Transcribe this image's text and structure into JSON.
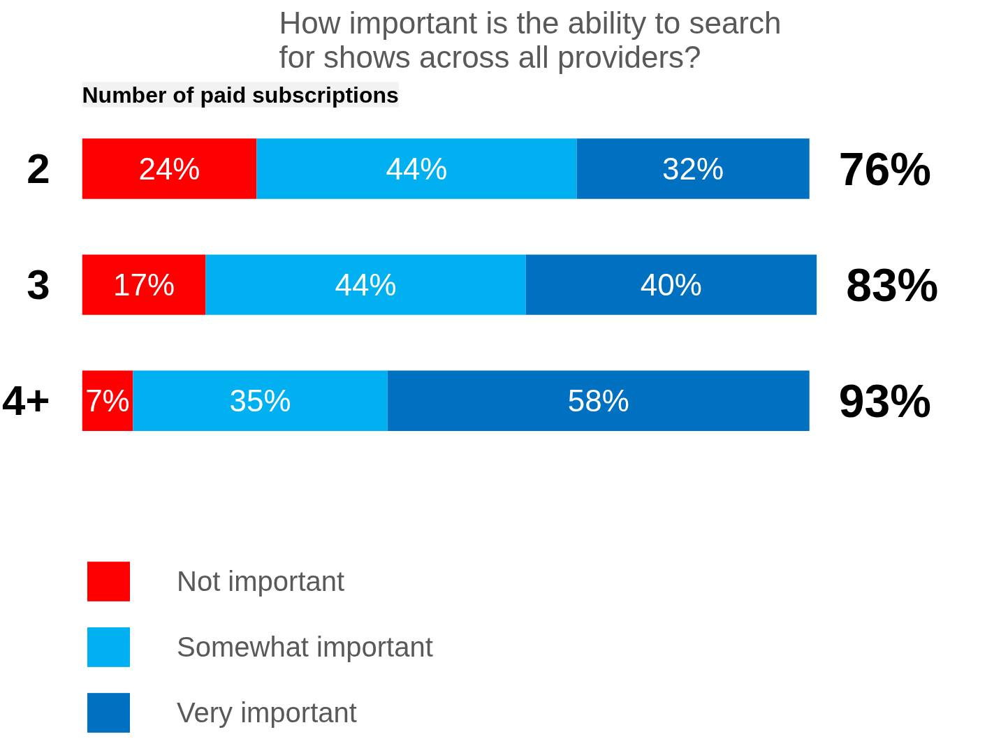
{
  "chart_data": {
    "type": "bar",
    "orientation": "horizontal",
    "stacked": true,
    "title": "How important is the ability to search\nfor shows across all providers?",
    "annotations": [
      "Number of paid subscriptions",
      "76%",
      "83%",
      "93%"
    ],
    "categories": [
      "2",
      "3",
      "4+"
    ],
    "series": [
      {
        "name": "Not important",
        "color": "#ff0000",
        "values": [
          24,
          17,
          7
        ],
        "value_labels": [
          "24%",
          "17%",
          "7%"
        ]
      },
      {
        "name": "Somewhat important",
        "color": "#00b0f0",
        "values": [
          44,
          44,
          35
        ],
        "value_labels": [
          "44%",
          "44%",
          "35%"
        ]
      },
      {
        "name": "Very important",
        "color": "#0070c0",
        "values": [
          32,
          40,
          58
        ],
        "value_labels": [
          "32%",
          "40%",
          "58%"
        ]
      }
    ],
    "legend": "bottom left"
  }
}
